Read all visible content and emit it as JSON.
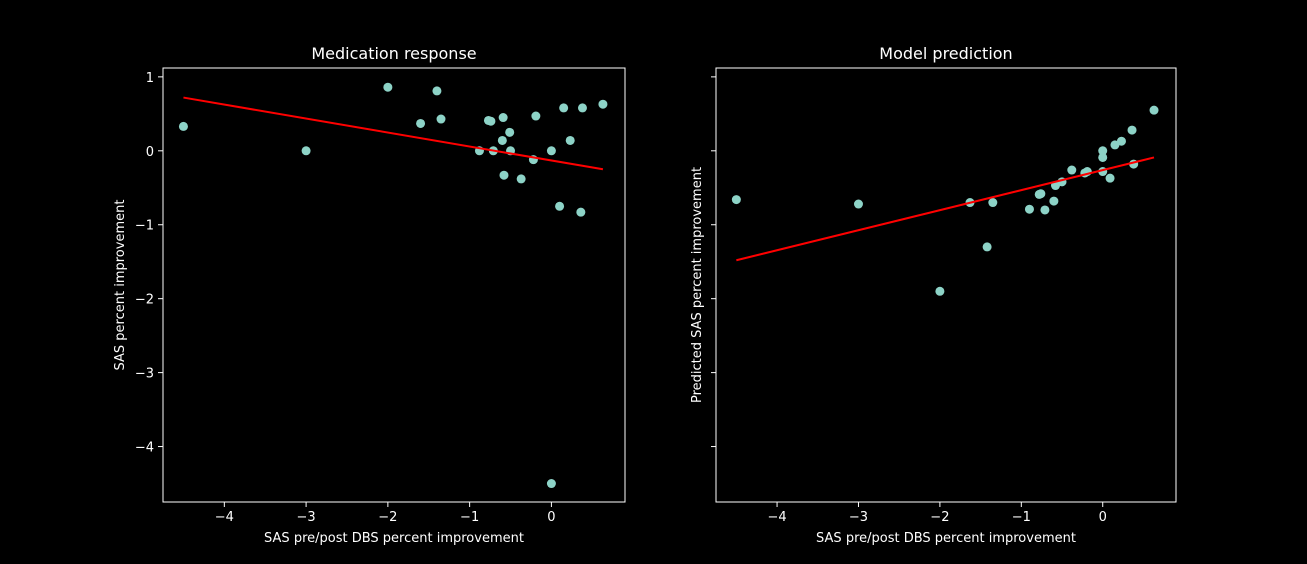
{
  "chart_data": [
    {
      "type": "scatter",
      "title": "Medication response",
      "xlabel": "SAS pre/post DBS percent improvement",
      "ylabel": "SAS percent improvement",
      "xlim": [
        -4.75,
        0.9
      ],
      "ylim": [
        -4.75,
        1.12
      ],
      "xticks": [
        -4,
        -3,
        -2,
        -1,
        0
      ],
      "yticks": [
        1,
        0,
        -1,
        -2,
        -3,
        -4
      ],
      "xtick_labels": [
        "−4",
        "−3",
        "−2",
        "−1",
        "0"
      ],
      "ytick_labels": [
        "1",
        "0",
        "−1",
        "−2",
        "−3",
        "−4"
      ],
      "grid": false,
      "point_color": "#8dd3c7",
      "line_color": "#ff0000",
      "series": [
        {
          "kind": "points",
          "x": [
            -4.5,
            -3.0,
            -2.0,
            -1.6,
            -1.4,
            -1.35,
            -0.88,
            -0.77,
            -0.74,
            -0.71,
            -0.6,
            -0.59,
            -0.58,
            -0.51,
            -0.5,
            -0.37,
            -0.22,
            -0.19,
            0.0,
            0.0,
            0.1,
            0.15,
            0.23,
            0.36,
            0.38,
            0.63
          ],
          "y": [
            0.33,
            0.0,
            0.86,
            0.37,
            0.81,
            0.43,
            0.0,
            0.41,
            0.4,
            0.0,
            0.14,
            0.45,
            -0.33,
            0.25,
            0.0,
            -0.38,
            -0.12,
            0.47,
            0.0,
            -4.5,
            -0.75,
            0.58,
            0.14,
            -0.83,
            0.58,
            0.63
          ]
        },
        {
          "kind": "line",
          "x": [
            -4.5,
            0.63
          ],
          "y": [
            0.72,
            -0.25
          ]
        }
      ]
    },
    {
      "type": "scatter",
      "title": "Model prediction",
      "xlabel": "SAS pre/post DBS percent improvement",
      "ylabel": "Predicted SAS percent improvement",
      "xlim": [
        -4.75,
        0.9
      ],
      "ylim": [
        -4.75,
        1.12
      ],
      "xticks": [
        -4,
        -3,
        -2,
        -1,
        0
      ],
      "yticks": [
        1,
        0,
        -1,
        -2,
        -3,
        -4
      ],
      "xtick_labels": [
        "−4",
        "−3",
        "−2",
        "−1",
        "0"
      ],
      "ytick_labels": [],
      "grid": false,
      "point_color": "#8dd3c7",
      "line_color": "#ff0000",
      "series": [
        {
          "kind": "points",
          "x": [
            -4.5,
            -3.0,
            -2.0,
            -1.63,
            -1.42,
            -1.35,
            -0.9,
            -0.78,
            -0.76,
            -0.71,
            -0.6,
            -0.58,
            -0.5,
            -0.38,
            -0.22,
            -0.19,
            0.0,
            0.0,
            0.0,
            0.09,
            0.15,
            0.23,
            0.36,
            0.38,
            0.63
          ],
          "y": [
            -0.66,
            -0.72,
            -1.9,
            -0.7,
            -1.3,
            -0.7,
            -0.79,
            -0.59,
            -0.58,
            -0.8,
            -0.68,
            -0.47,
            -0.42,
            -0.26,
            -0.3,
            -0.28,
            0.0,
            -0.09,
            -0.28,
            -0.37,
            0.08,
            0.13,
            0.28,
            -0.18,
            0.55
          ]
        },
        {
          "kind": "line",
          "x": [
            -4.5,
            0.63
          ],
          "y": [
            -1.48,
            -0.09
          ]
        }
      ]
    }
  ]
}
